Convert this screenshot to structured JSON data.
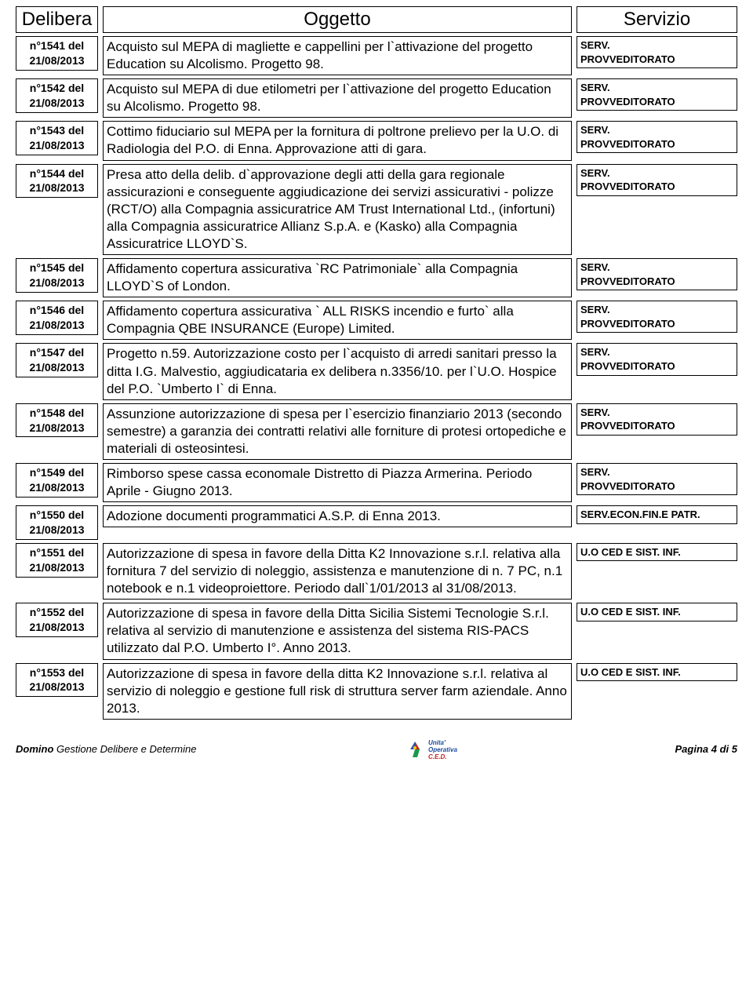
{
  "headers": {
    "delibera": "Delibera",
    "oggetto": "Oggetto",
    "servizio": "Servizio"
  },
  "rows": [
    {
      "del_num": "n°1541 del",
      "del_date": "21/08/2013",
      "oggetto": "Acquisto sul MEPA di magliette e cappellini per l`attivazione del progetto Education su  Alcolismo.  Progetto  98.",
      "serv1": "SERV.",
      "serv2": "PROVVEDITORATO"
    },
    {
      "del_num": "n°1542 del",
      "del_date": "21/08/2013",
      "oggetto": "Acquisto sul MEPA di  due etilometri per l`attivazione del progetto Education su  Alcolismo.  Progetto  98.",
      "serv1": "SERV.",
      "serv2": "PROVVEDITORATO"
    },
    {
      "del_num": "n°1543 del",
      "del_date": "21/08/2013",
      "oggetto": "Cottimo fiduciario sul MEPA per la fornitura di poltrone prelievo per la U.O. di Radiologia del P.O. di Enna. Approvazione atti di gara.",
      "serv1": "SERV.",
      "serv2": "PROVVEDITORATO"
    },
    {
      "del_num": "n°1544 del",
      "del_date": "21/08/2013",
      "oggetto": "Presa atto della delib. d`approvazione degli  atti della gara regionale assicurazioni e conseguente aggiudicazione dei servizi assicurativi - polizze (RCT/O) alla Compagnia assicuratrice AM Trust International  Ltd., (infortuni) alla Compagnia assicuratrice Allianz S.p.A. e (Kasko) alla Compagnia Assicuratrice LLOYD`S.",
      "serv1": "SERV.",
      "serv2": "PROVVEDITORATO"
    },
    {
      "del_num": "n°1545 del",
      "del_date": "21/08/2013",
      "oggetto": "Affidamento copertura assicurativa `RC Patrimoniale` alla Compagnia LLOYD`S of London.",
      "serv1": "SERV.",
      "serv2": "PROVVEDITORATO"
    },
    {
      "del_num": "n°1546 del",
      "del_date": "21/08/2013",
      "oggetto": "Affidamento copertura assicurativa ` ALL RISKS  incendio e furto`  alla  Compagnia  QBE INSURANCE (Europe) Limited.",
      "serv1": "SERV.",
      "serv2": "PROVVEDITORATO"
    },
    {
      "del_num": "n°1547 del",
      "del_date": "21/08/2013",
      "oggetto": "Progetto n.59. Autorizzazione costo per l`acquisto di arredi sanitari presso la ditta I.G. Malvestio, aggiudicataria ex delibera n.3356/10. per l`U.O. Hospice del P.O. `Umberto I` di Enna.",
      "serv1": "SERV.",
      "serv2": "PROVVEDITORATO"
    },
    {
      "del_num": "n°1548 del",
      "del_date": "21/08/2013",
      "oggetto": "Assunzione autorizzazione di spesa per l`esercizio finanziario 2013 (secondo  semestre) a garanzia  dei contratti relativi alle forniture di protesi ortopediche e materiali di osteosintesi.",
      "serv1": "SERV.",
      "serv2": "PROVVEDITORATO"
    },
    {
      "del_num": "n°1549 del",
      "del_date": "21/08/2013",
      "oggetto": "Rimborso spese cassa economale Distretto di Piazza Armerina. Periodo Aprile - Giugno 2013.",
      "serv1": "SERV.",
      "serv2": "PROVVEDITORATO"
    },
    {
      "del_num": "n°1550 del",
      "del_date": "21/08/2013",
      "oggetto": "Adozione documenti programmatici A.S.P. di Enna 2013.",
      "serv1": "SERV.ECON.FIN.E PATR.",
      "serv2": ""
    },
    {
      "del_num": "n°1551 del",
      "del_date": "21/08/2013",
      "oggetto": "Autorizzazione di spesa in favore della Ditta K2  Innovazione s.r.l.  relativa alla fornitura 7 del servizio di noleggio, assistenza e manutenzione di n. 7 PC, n.1 notebook e n.1 videoproiettore. Periodo dall`1/01/2013 al 31/08/2013.",
      "serv1": "U.O CED E SIST. INF.",
      "serv2": ""
    },
    {
      "del_num": "n°1552 del",
      "del_date": "21/08/2013",
      "oggetto": "Autorizzazione di spesa in favore della Ditta Sicilia Sistemi Tecnologie S.r.l. relativa al servizio di manutenzione e assistenza del sistema RIS-PACS utilizzato dal P.O. Umberto I°. Anno 2013.",
      "serv1": "U.O CED E SIST. INF.",
      "serv2": ""
    },
    {
      "del_num": "n°1553 del",
      "del_date": "21/08/2013",
      "oggetto": "Autorizzazione di spesa in favore della ditta K2 Innovazione s.r.l. relativa al servizio di noleggio e gestione full risk di struttura server farm aziendale. Anno 2013.",
      "serv1": "U.O CED E SIST. INF.",
      "serv2": ""
    }
  ],
  "footer": {
    "brand": "Domino",
    "left_text": " Gestione Delibere e Determine",
    "logo_text1": "Unita'",
    "logo_text2": "Operativa",
    "logo_text3": "C.E.D.",
    "right_text": "Pagina 4 di 5"
  }
}
